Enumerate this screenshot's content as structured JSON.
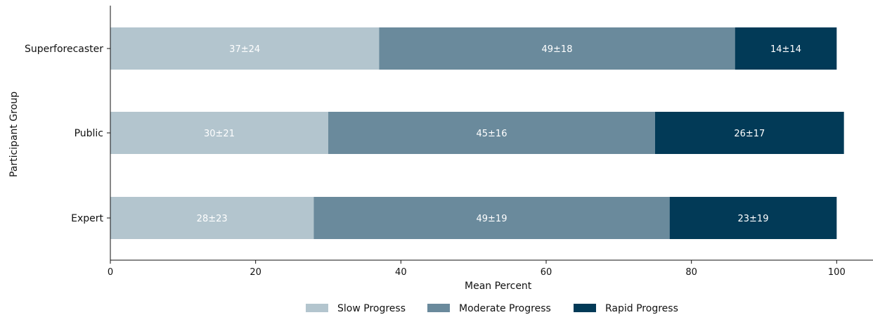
{
  "chart_data": {
    "type": "bar",
    "orientation": "horizontal",
    "stacked": true,
    "categories": [
      "Superforecaster",
      "Public",
      "Expert"
    ],
    "series": [
      {
        "name": "Slow Progress",
        "color": "#b3c5ce",
        "label_color": "#ffffff",
        "values": [
          37,
          30,
          28
        ],
        "labels": [
          "37±24",
          "30±21",
          "28±23"
        ]
      },
      {
        "name": "Moderate Progress",
        "color": "#6a8a9c",
        "label_color": "#ffffff",
        "values": [
          49,
          45,
          49
        ],
        "labels": [
          "49±18",
          "45±16",
          "49±19"
        ]
      },
      {
        "name": "Rapid Progress",
        "color": "#023a57",
        "label_color": "#ffffff",
        "values": [
          14,
          26,
          23
        ],
        "labels": [
          "14±14",
          "26±17",
          "23±19"
        ]
      }
    ],
    "xlabel": "Mean Percent",
    "ylabel": "Participant Group",
    "xlim": [
      0,
      105
    ],
    "xticks": [
      0,
      20,
      40,
      60,
      80,
      100
    ],
    "grid": false,
    "legend_position": "bottom"
  }
}
